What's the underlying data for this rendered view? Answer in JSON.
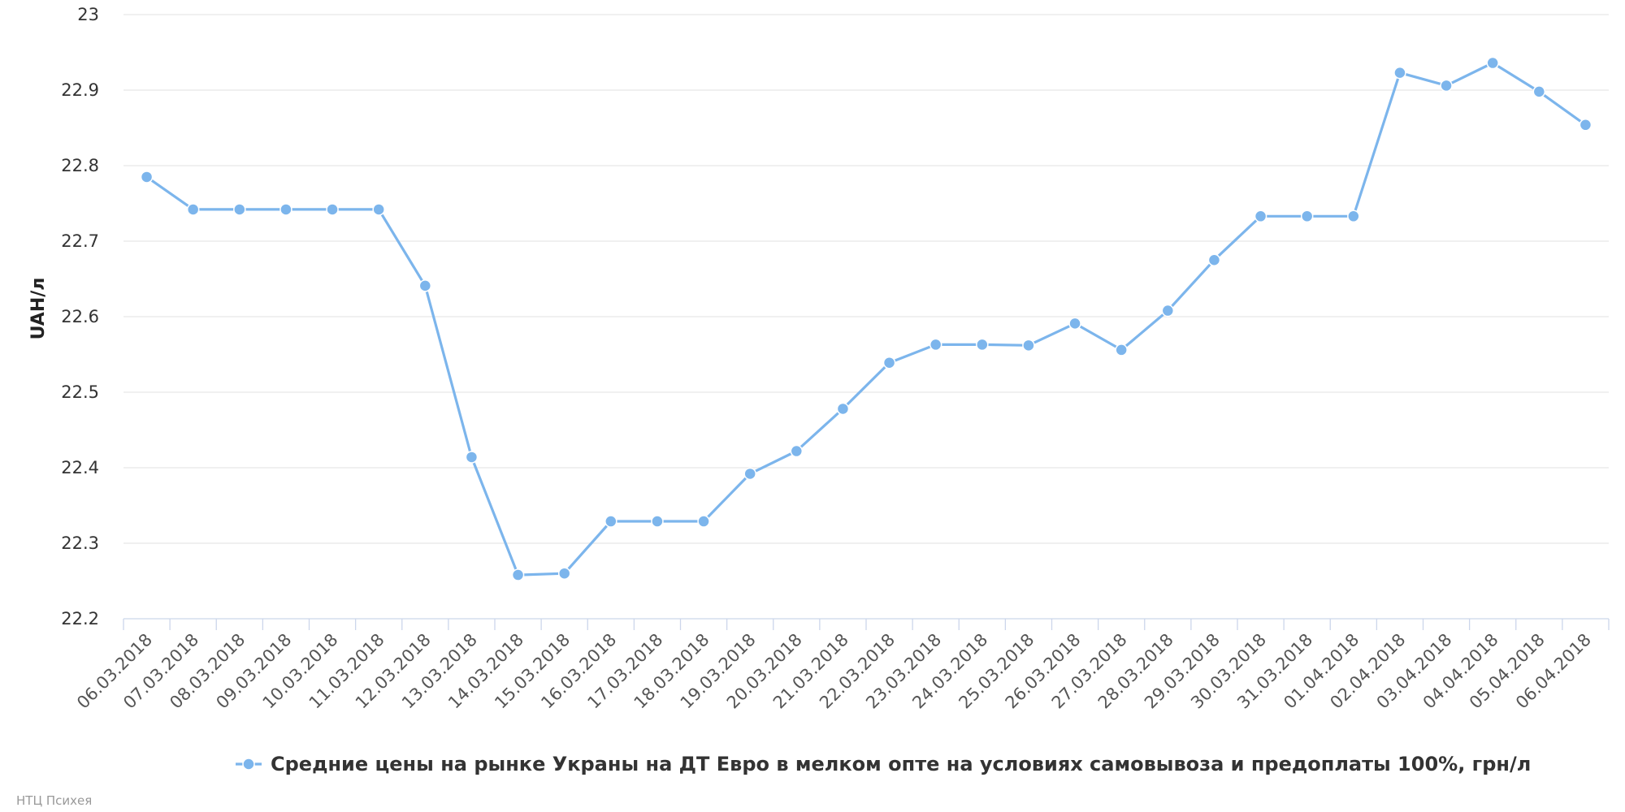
{
  "chart_data": {
    "type": "line",
    "title": "",
    "xlabel": "",
    "ylabel": "UAH/л",
    "ylim": [
      22.2,
      23
    ],
    "yticks": [
      "22.2",
      "22.3",
      "22.4",
      "22.5",
      "22.6",
      "22.7",
      "22.8",
      "22.9",
      "23"
    ],
    "grid": true,
    "legend_position": "bottom-center",
    "categories": [
      "06.03.2018",
      "07.03.2018",
      "08.03.2018",
      "09.03.2018",
      "10.03.2018",
      "11.03.2018",
      "12.03.2018",
      "13.03.2018",
      "14.03.2018",
      "15.03.2018",
      "16.03.2018",
      "17.03.2018",
      "18.03.2018",
      "19.03.2018",
      "20.03.2018",
      "21.03.2018",
      "22.03.2018",
      "23.03.2018",
      "24.03.2018",
      "25.03.2018",
      "26.03.2018",
      "27.03.2018",
      "28.03.2018",
      "29.03.2018",
      "30.03.2018",
      "31.03.2018",
      "01.04.2018",
      "02.04.2018",
      "03.04.2018",
      "04.04.2018",
      "05.04.2018",
      "06.04.2018"
    ],
    "series": [
      {
        "name": "Средние цены на рынке Украны на ДТ Евро в мелком опте на условиях самовывоза и предоплаты 100%, грн/л",
        "color": "#7cb5ec",
        "values": [
          22.785,
          22.742,
          22.742,
          22.742,
          22.742,
          22.742,
          22.641,
          22.414,
          22.258,
          22.26,
          22.329,
          22.329,
          22.329,
          22.392,
          22.422,
          22.478,
          22.539,
          22.563,
          22.563,
          22.562,
          22.591,
          22.556,
          22.608,
          22.675,
          22.733,
          22.733,
          22.733,
          22.923,
          22.906,
          22.936,
          22.898,
          22.854
        ]
      }
    ]
  },
  "credits": "НТЦ Психея"
}
